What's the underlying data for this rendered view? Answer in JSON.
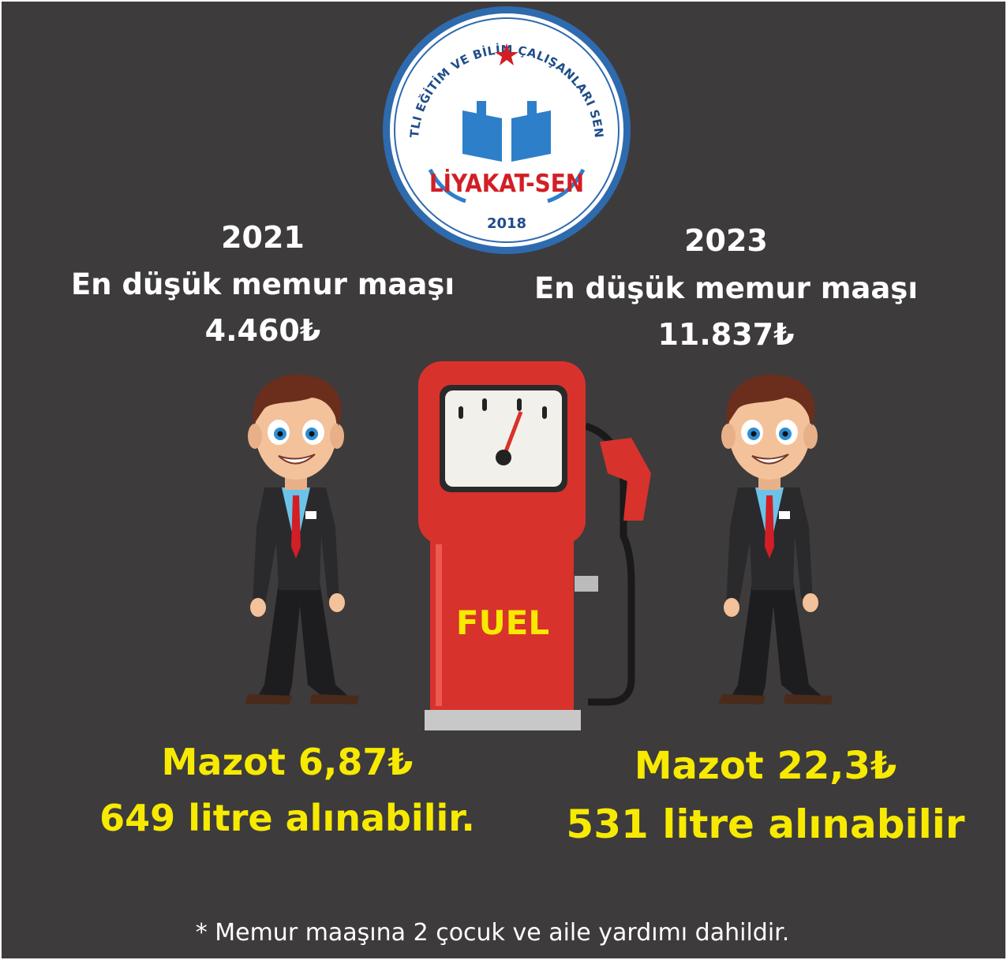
{
  "logo": {
    "ring_text": "LİYAKATLI EĞİTİM VE BİLİM ÇALIŞANLARI SENDİKASI",
    "name": "LİYAKAT-SEN",
    "year": "2018"
  },
  "left": {
    "year": "2021",
    "label": "En düşük memur maaşı",
    "salary": "4.460₺",
    "fuel_price": "Mazot 6,87₺",
    "litres": "649 litre alınabilir."
  },
  "right": {
    "year": "2023",
    "label": "En düşük memur maaşı",
    "salary": "11.837₺",
    "fuel_price": "Mazot 22,3₺",
    "litres": "531 litre alınabilir"
  },
  "pump": {
    "label": "FUEL"
  },
  "footnote": "* Memur maaşına 2 çocuk ve aile yardımı dahildir."
}
